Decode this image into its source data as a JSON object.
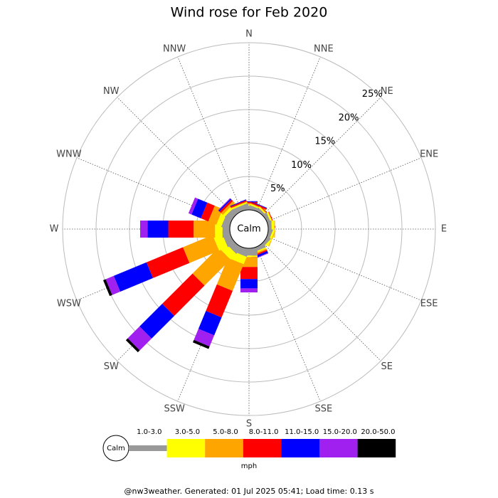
{
  "chart_data": {
    "type": "windrose",
    "title": "Wind rose for Feb 2020",
    "directions": [
      "N",
      "NNE",
      "NE",
      "ENE",
      "E",
      "ESE",
      "SE",
      "SSE",
      "S",
      "SSW",
      "SW",
      "WSW",
      "W",
      "WNW",
      "NW",
      "NNW"
    ],
    "rlim": [
      0,
      25
    ],
    "rticks": [
      {
        "value": 5,
        "label": "5%"
      },
      {
        "value": 10,
        "label": "10%"
      },
      {
        "value": 15,
        "label": "15%"
      },
      {
        "value": 20,
        "label": "20%"
      },
      {
        "value": 25,
        "label": "25%"
      }
    ],
    "calm_label": "Calm",
    "unit": "mph",
    "series": [
      {
        "name": "1.0-3.0",
        "color": "#999999",
        "values": [
          0.6,
          0.5,
          0.4,
          0.5,
          0.5,
          0.5,
          0.5,
          0.6,
          1.1,
          1.1,
          1.1,
          1.1,
          1.1,
          1.1,
          1.0,
          0.8
        ]
      },
      {
        "name": "3.0-5.0",
        "color": "#ffff00",
        "values": [
          0.2,
          0.2,
          0.2,
          0.3,
          0.4,
          0.3,
          0.2,
          0.2,
          0.2,
          1.2,
          1.2,
          1.4,
          1.1,
          0.8,
          0.4,
          0.2
        ]
      },
      {
        "name": "5.0-8.0",
        "color": "#ffa500",
        "values": [
          0.2,
          0.1,
          0.1,
          0,
          0.1,
          0.1,
          0,
          0.2,
          1.5,
          4.3,
          5.5,
          4.8,
          3.2,
          1.3,
          0.4,
          0.1
        ]
      },
      {
        "name": "8.0-11.0",
        "color": "#ff0000",
        "values": [
          0.2,
          0.2,
          0.1,
          0.1,
          0,
          0,
          0,
          0.2,
          1.8,
          4.3,
          6.4,
          5.9,
          3.8,
          1.2,
          0.3,
          0.2
        ]
      },
      {
        "name": "11.0-15.0",
        "color": "#0000ff",
        "values": [
          0.1,
          0.1,
          0,
          0,
          0,
          0,
          0,
          0.3,
          1.4,
          2.9,
          4.8,
          5.3,
          3.1,
          1.5,
          0.2,
          0.1
        ]
      },
      {
        "name": "15.0-20.0",
        "color": "#a020f0",
        "values": [
          0,
          0,
          0,
          0,
          0,
          0,
          0,
          0.1,
          0.6,
          1.8,
          2.5,
          1.3,
          1.1,
          0.5,
          0.1,
          0
        ]
      },
      {
        "name": "20.0-50.0",
        "color": "#000000",
        "values": [
          0,
          0,
          0,
          0,
          0,
          0,
          0,
          0,
          0,
          0.4,
          0.4,
          0.4,
          0,
          0,
          0,
          0
        ]
      }
    ]
  },
  "footer": "@nw3weather. Generated: 01 Jul 2025 05:41; Load time: 0.13 s"
}
